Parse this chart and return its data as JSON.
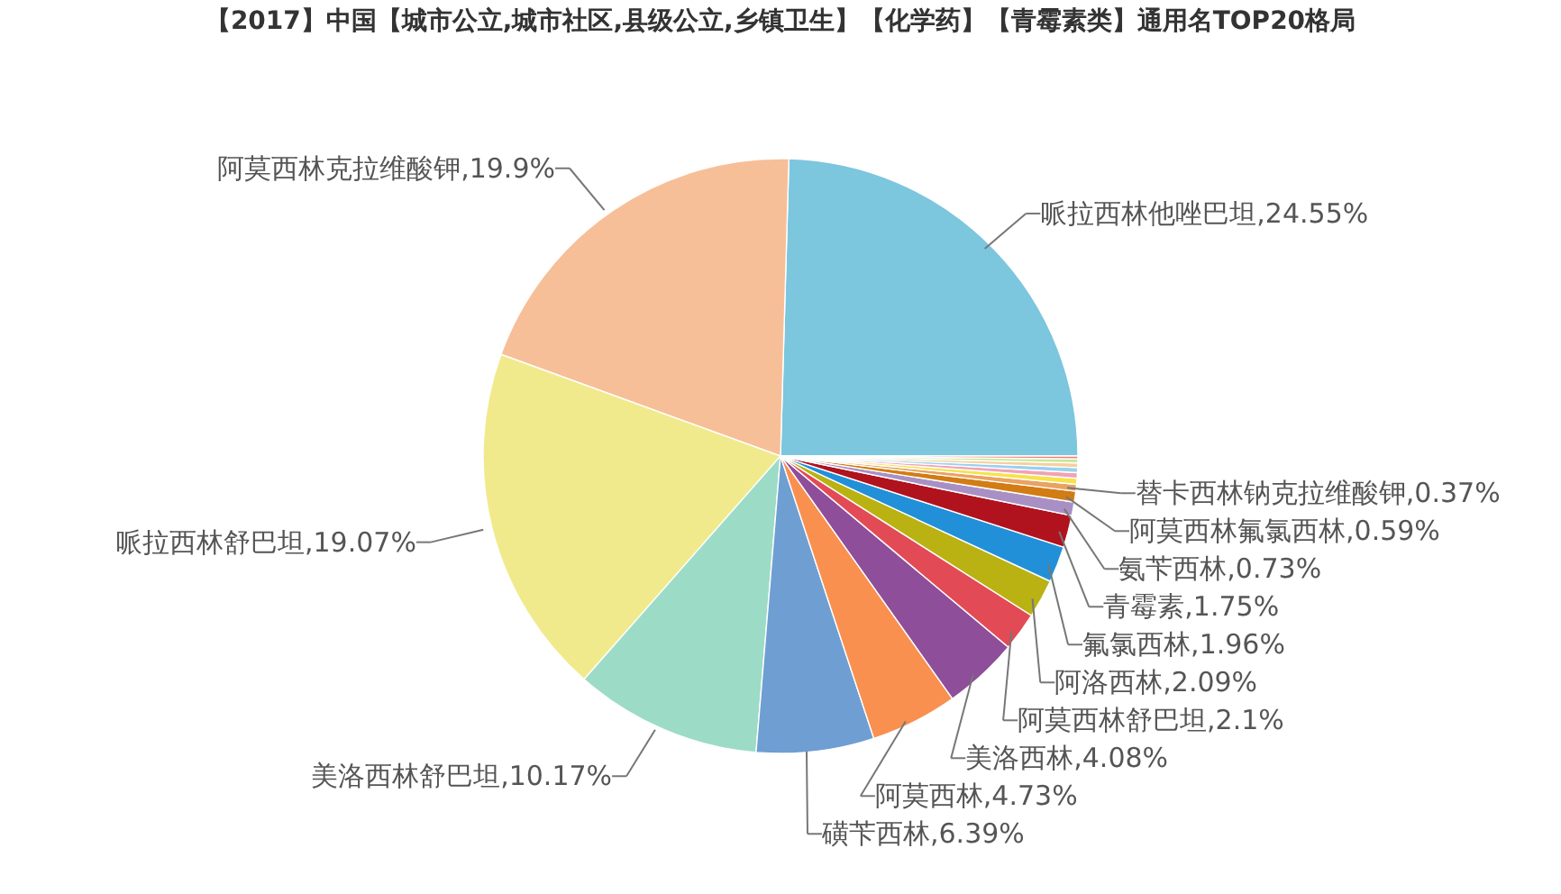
{
  "chart_data": {
    "type": "pie",
    "title": "【2017】中国【城市公立,城市社区,县级公立,乡镇卫生】【化学药】【青霉素类】通用名TOP20格局",
    "categories": [
      "哌拉西林他唑巴坦",
      "阿莫西林克拉维酸钾",
      "哌拉西林舒巴坦",
      "美洛西林舒巴坦",
      "磺苄西林",
      "阿莫西林",
      "美洛西林",
      "阿莫西林舒巴坦",
      "阿洛西林",
      "氟氯西林",
      "青霉素",
      "氨苄西林",
      "阿莫西林氟氯西林",
      "替卡西林钠克拉维酸钾",
      null,
      null,
      null,
      null,
      null,
      null
    ],
    "values": [
      24.55,
      19.9,
      19.07,
      10.17,
      6.39,
      4.73,
      4.08,
      2.1,
      2.09,
      1.96,
      1.75,
      0.73,
      0.59,
      0.37,
      0.33,
      0.3,
      0.27,
      0.25,
      0.21,
      0.16
    ],
    "value_labels": [
      "24.55%",
      "19.9%",
      "19.07%",
      "10.17%",
      "6.39%",
      "4.73%",
      "4.08%",
      "2.1%",
      "2.09%",
      "1.96%",
      "1.75%",
      "0.73%",
      "0.59%",
      "0.37%",
      null,
      null,
      null,
      null,
      null,
      null
    ],
    "colors": [
      "#7cc6de",
      "#f7bf98",
      "#f1ea8c",
      "#9cdcc6",
      "#6f9ed3",
      "#f99050",
      "#8e4e9a",
      "#e24b55",
      "#b9b212",
      "#2190d8",
      "#b0121e",
      "#a890c4",
      "#d27c14",
      "#e9a262",
      "#f6e24c",
      "#f2a2b4",
      "#9ad0ee",
      "#f5d0a0",
      "#c8e890",
      "#f08080"
    ]
  }
}
